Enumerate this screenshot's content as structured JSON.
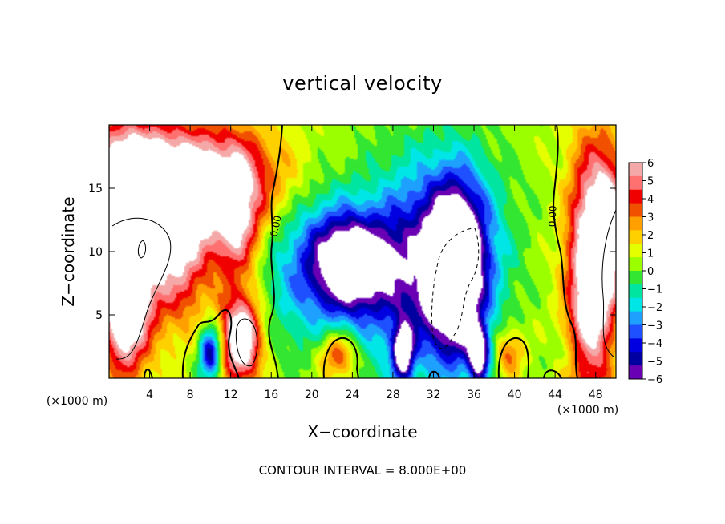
{
  "chart_data": {
    "type": "heatmap",
    "title": "vertical velocity",
    "xlabel": "X−coordinate",
    "ylabel": "Z−coordinate",
    "x_unit": "(×1000 m)",
    "y_unit": "(×1000 m)",
    "xlim": [
      0,
      50
    ],
    "ylim": [
      0,
      20
    ],
    "x_ticks": [
      4,
      8,
      12,
      16,
      20,
      24,
      28,
      32,
      36,
      40,
      44,
      48
    ],
    "y_ticks": [
      5,
      10,
      15
    ],
    "colorbar": {
      "ticks": [
        "6",
        "5",
        "4",
        "3",
        "2",
        "1",
        "0",
        "−1",
        "−2",
        "−3",
        "−4",
        "−5",
        "−6"
      ],
      "range": [
        -6,
        6
      ],
      "colors": [
        "#f4a8a8",
        "#ff7070",
        "#f00000",
        "#f05000",
        "#ffa000",
        "#ffd000",
        "#e6ff00",
        "#9bff00",
        "#32e632",
        "#00e6a0",
        "#00e6e6",
        "#1ea0ff",
        "#1e50ff",
        "#0000e0",
        "#0000a0",
        "#6a00b4"
      ]
    },
    "contour_label": "0.00",
    "footer": "CONTOUR INTERVAL = 8.000E+00",
    "features": [
      {
        "x": 7.0,
        "z": 15.2,
        "sx": 8.5,
        "sz": 3.2,
        "w": 6.0
      },
      {
        "x": 2.0,
        "z": 10.5,
        "sx": 2.0,
        "sz": 5.0,
        "w": 9.0
      },
      {
        "x": 7.0,
        "z": 10.0,
        "sx": 2.0,
        "sz": 4.0,
        "w": 5.0
      },
      {
        "x": 12.5,
        "z": 12.0,
        "sx": 1.6,
        "sz": 3.5,
        "w": 4.5
      },
      {
        "x": 13.0,
        "z": 3.0,
        "sx": 1.4,
        "sz": 2.4,
        "w": 8.0
      },
      {
        "x": 10.0,
        "z": 2.0,
        "sx": 0.8,
        "sz": 1.5,
        "w": -6.0
      },
      {
        "x": 1.5,
        "z": 4.0,
        "sx": 1.5,
        "sz": 3.0,
        "w": 4.0
      },
      {
        "x": 20.5,
        "z": 10.0,
        "sx": 4.0,
        "sz": 5.0,
        "w": -4.0
      },
      {
        "x": 24.0,
        "z": 9.0,
        "sx": 2.5,
        "sz": 2.5,
        "w": -7.0
      },
      {
        "x": 34.0,
        "z": 10.0,
        "sx": 3.5,
        "sz": 5.0,
        "w": -5.0
      },
      {
        "x": 34.2,
        "z": 8.0,
        "sx": 1.8,
        "sz": 4.5,
        "w": -8.0
      },
      {
        "x": 29.0,
        "z": 8.0,
        "sx": 3.0,
        "sz": 6.0,
        "w": -3.5
      },
      {
        "x": 29.0,
        "z": 2.0,
        "sx": 0.7,
        "sz": 1.5,
        "w": -7.0
      },
      {
        "x": 36.5,
        "z": 1.8,
        "sx": 0.7,
        "sz": 1.5,
        "w": -7.0
      },
      {
        "x": 22.5,
        "z": 1.8,
        "sx": 1.3,
        "sz": 1.3,
        "w": 4.0
      },
      {
        "x": 39.5,
        "z": 2.0,
        "sx": 1.0,
        "sz": 1.3,
        "w": 3.0
      },
      {
        "x": 47.5,
        "z": 8.0,
        "sx": 1.6,
        "sz": 7.0,
        "w": 8.0
      },
      {
        "x": 49.5,
        "z": 12.0,
        "sx": 1.2,
        "sz": 4.0,
        "w": 5.0
      },
      {
        "x": 5.0,
        "z": 18.0,
        "sx": 6.0,
        "sz": 2.0,
        "w": 1.5
      },
      {
        "x": 46.0,
        "z": 2.0,
        "sx": 2.0,
        "sz": 1.0,
        "w": -1.0
      }
    ]
  }
}
